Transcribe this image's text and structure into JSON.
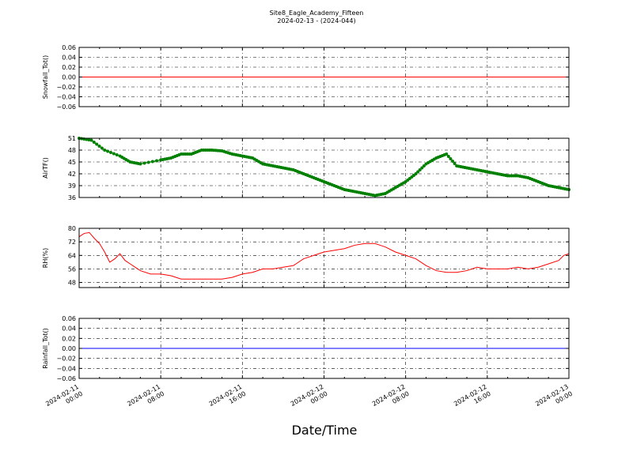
{
  "title": "Site8_Eagle_Academy_Fifteen",
  "subtitle": "2024-02-13 - (2024-044)",
  "xlabel": "Date/Time",
  "x_ticks": [
    {
      "line1": "2024-02-11",
      "line2": "00:00"
    },
    {
      "line1": "2024-02-11",
      "line2": "08:00"
    },
    {
      "line1": "2024-02-11",
      "line2": "16:00"
    },
    {
      "line1": "2024-02-12",
      "line2": "00:00"
    },
    {
      "line1": "2024-02-12",
      "line2": "08:00"
    },
    {
      "line1": "2024-02-12",
      "line2": "16:00"
    },
    {
      "line1": "2024-02-13",
      "line2": "00:00"
    }
  ],
  "chart_data": [
    {
      "type": "line",
      "ylabel": "Snowfall_Tot()",
      "xlim": [
        "2024-02-11 00:00",
        "2024-02-13 00:00"
      ],
      "ylim": [
        -0.06,
        0.06
      ],
      "yticks": [
        -0.06,
        -0.04,
        -0.02,
        0.0,
        0.02,
        0.04,
        0.06
      ],
      "ytick_labels": [
        "−0.06",
        "−0.04",
        "−0.02",
        "0.00",
        "0.02",
        "0.04",
        "0.06"
      ],
      "grid": true,
      "color": "#ff0000",
      "marker": "none",
      "x_hours": [
        0,
        48
      ],
      "y": [
        0,
        0
      ]
    },
    {
      "type": "line",
      "ylabel": "AirTF()",
      "xlim": [
        "2024-02-11 00:00",
        "2024-02-13 00:00"
      ],
      "ylim": [
        36,
        51
      ],
      "yticks": [
        36,
        39,
        42,
        45,
        48,
        51
      ],
      "ytick_labels": [
        "36",
        "39",
        "42",
        "45",
        "48",
        "51"
      ],
      "grid": true,
      "color": "#008000",
      "marker": "dot",
      "x_hours": [
        0,
        1.2,
        2.5,
        4,
        5,
        6,
        8,
        9,
        10,
        11,
        12,
        13,
        14,
        15,
        16,
        17,
        18,
        19,
        20,
        21,
        22,
        23,
        24,
        25,
        26,
        27,
        28,
        29,
        30,
        31,
        32,
        33,
        34,
        35,
        36,
        37,
        38,
        39,
        40,
        41,
        42,
        43,
        44,
        45,
        46,
        47,
        48
      ],
      "y": [
        51,
        50.5,
        48,
        46.5,
        45,
        44.5,
        45.5,
        46,
        47,
        47,
        48,
        48,
        47.8,
        47,
        46.5,
        46,
        44.5,
        44,
        43.5,
        43,
        42,
        41,
        40,
        39,
        38,
        37.5,
        37,
        36.5,
        37,
        38.5,
        40,
        42,
        44.5,
        46,
        47,
        44,
        43.5,
        43,
        42.5,
        42,
        41.5,
        41.5,
        41,
        40,
        39,
        38.5,
        38
      ]
    },
    {
      "type": "line",
      "ylabel": "RH(%)",
      "xlim": [
        "2024-02-11 00:00",
        "2024-02-13 00:00"
      ],
      "ylim": [
        45,
        80
      ],
      "yticks": [
        48,
        56,
        64,
        72,
        80
      ],
      "ytick_labels": [
        "48",
        "56",
        "64",
        "72",
        "80"
      ],
      "grid": true,
      "color": "#ff0000",
      "marker": "none",
      "x_hours": [
        0,
        0.5,
        1,
        1.5,
        2,
        2.5,
        3,
        3.5,
        4,
        4.5,
        5,
        5.5,
        6,
        7,
        7.5,
        8,
        9,
        9.5,
        10,
        11,
        12,
        13,
        14,
        15,
        16,
        17,
        18,
        19,
        20,
        21,
        22,
        22.5,
        23,
        24,
        25,
        26,
        27,
        28,
        29,
        29.5,
        30,
        31,
        31.5,
        32,
        33,
        34,
        35,
        36,
        37,
        38,
        39,
        40,
        41,
        42,
        43,
        44,
        45,
        46,
        47,
        47.5,
        48
      ],
      "y": [
        75,
        77,
        77.5,
        74,
        71,
        66,
        60,
        62,
        65,
        61,
        59,
        57,
        55,
        53,
        53,
        53,
        52,
        51,
        50,
        50,
        50,
        50,
        50,
        51,
        53,
        54,
        56,
        56,
        57,
        58,
        62,
        63,
        64,
        66,
        67,
        68,
        70,
        71,
        71,
        70,
        69,
        66,
        65,
        64,
        62,
        58,
        55,
        54,
        54,
        55,
        57,
        56,
        56,
        56,
        57,
        56,
        57,
        59,
        61,
        64,
        65
      ]
    },
    {
      "type": "line",
      "ylabel": "Rainfall_Tot()",
      "xlim": [
        "2024-02-11 00:00",
        "2024-02-13 00:00"
      ],
      "ylim": [
        -0.06,
        0.06
      ],
      "yticks": [
        -0.06,
        -0.04,
        -0.02,
        0.0,
        0.02,
        0.04,
        0.06
      ],
      "ytick_labels": [
        "−0.06",
        "−0.04",
        "−0.02",
        "0.00",
        "0.02",
        "0.04",
        "0.06"
      ],
      "grid": true,
      "color": "#0000ff",
      "marker": "none",
      "x_hours": [
        0,
        48
      ],
      "y": [
        0,
        0
      ]
    }
  ]
}
